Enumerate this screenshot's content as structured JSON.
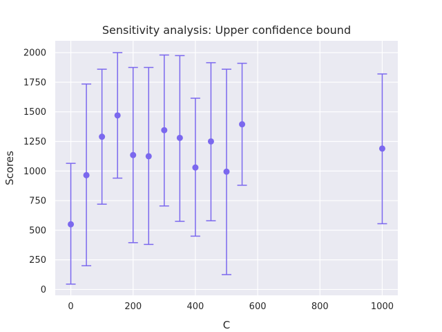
{
  "chart_data": {
    "type": "scatter",
    "title": "Sensitivity analysis: Upper confidence bound",
    "xlabel": "C",
    "ylabel": "Scores",
    "xlim": [
      -50,
      1050
    ],
    "ylim": [
      -50,
      2100
    ],
    "xticks": [
      0,
      200,
      400,
      600,
      800,
      1000
    ],
    "yticks": [
      0,
      250,
      500,
      750,
      1000,
      1250,
      1500,
      1750,
      2000
    ],
    "grid": true,
    "color": "#7b68ee",
    "background": "#eaeaf2",
    "points": [
      {
        "x": 0,
        "y": 550,
        "low": 45,
        "high": 1065
      },
      {
        "x": 50,
        "y": 965,
        "low": 200,
        "high": 1735
      },
      {
        "x": 100,
        "y": 1290,
        "low": 720,
        "high": 1860
      },
      {
        "x": 150,
        "y": 1470,
        "low": 940,
        "high": 2000
      },
      {
        "x": 200,
        "y": 1135,
        "low": 395,
        "high": 1875
      },
      {
        "x": 250,
        "y": 1125,
        "low": 380,
        "high": 1875
      },
      {
        "x": 300,
        "y": 1345,
        "low": 705,
        "high": 1980
      },
      {
        "x": 350,
        "y": 1280,
        "low": 575,
        "high": 1975
      },
      {
        "x": 400,
        "y": 1030,
        "low": 450,
        "high": 1615
      },
      {
        "x": 450,
        "y": 1250,
        "low": 580,
        "high": 1915
      },
      {
        "x": 500,
        "y": 995,
        "low": 125,
        "high": 1860
      },
      {
        "x": 550,
        "y": 1395,
        "low": 880,
        "high": 1910
      },
      {
        "x": 1000,
        "y": 1190,
        "low": 555,
        "high": 1820
      }
    ]
  }
}
